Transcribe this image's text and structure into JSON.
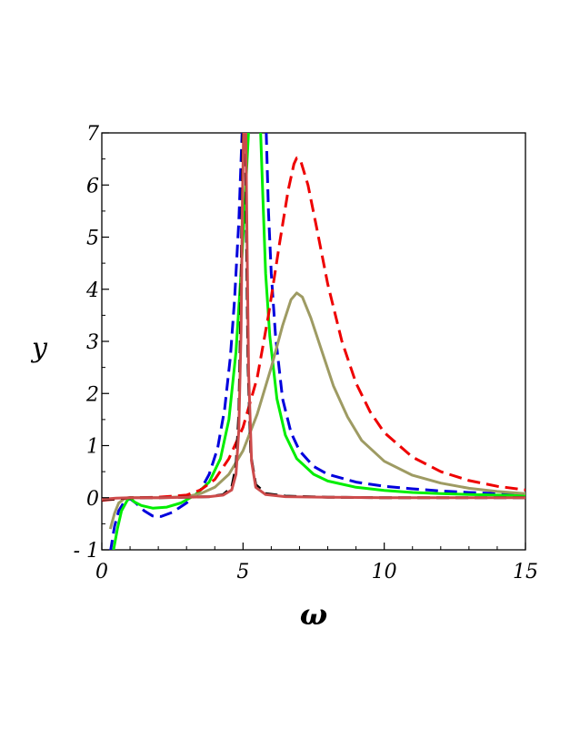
{
  "chart_data": {
    "type": "line",
    "xlabel": "ω",
    "ylabel": "y",
    "xlim": [
      0,
      15
    ],
    "ylim": [
      -1,
      7
    ],
    "x_ticks": [
      {
        "value": 0,
        "label": "0"
      },
      {
        "value": 5,
        "label": "5"
      },
      {
        "value": 10,
        "label": "10"
      },
      {
        "value": 15,
        "label": "15"
      }
    ],
    "y_ticks": [
      {
        "value": -1,
        "label": "- 1"
      },
      {
        "value": 0,
        "label": "0"
      },
      {
        "value": 1,
        "label": "1"
      },
      {
        "value": 2,
        "label": "2"
      },
      {
        "value": 3,
        "label": "3"
      },
      {
        "value": 4,
        "label": "4"
      },
      {
        "value": 5,
        "label": "5"
      },
      {
        "value": 6,
        "label": "6"
      },
      {
        "value": 7,
        "label": "7"
      }
    ],
    "grid": false,
    "series": [
      {
        "color": "#0000dd",
        "style": "dashed",
        "points": [
          [
            0.3,
            -1.05
          ],
          [
            0.45,
            -0.55
          ],
          [
            0.6,
            -0.25
          ],
          [
            0.8,
            -0.07
          ],
          [
            1.0,
            -0.02
          ],
          [
            1.2,
            -0.1
          ],
          [
            1.5,
            -0.25
          ],
          [
            1.8,
            -0.35
          ],
          [
            2.1,
            -0.36
          ],
          [
            2.5,
            -0.28
          ],
          [
            3.0,
            -0.1
          ],
          [
            3.5,
            0.15
          ],
          [
            3.8,
            0.45
          ],
          [
            4.1,
            0.95
          ],
          [
            4.35,
            1.7
          ],
          [
            4.55,
            2.7
          ],
          [
            4.7,
            3.8
          ],
          [
            4.85,
            5.3
          ],
          [
            4.97,
            7.05
          ],
          [
            5.82,
            7.05
          ],
          [
            5.9,
            5.5
          ],
          [
            6.0,
            4.3
          ],
          [
            6.15,
            3.1
          ],
          [
            6.4,
            1.9
          ],
          [
            6.7,
            1.25
          ],
          [
            7.0,
            0.9
          ],
          [
            7.5,
            0.6
          ],
          [
            8.0,
            0.45
          ],
          [
            9.0,
            0.3
          ],
          [
            10.0,
            0.22
          ],
          [
            11.0,
            0.17
          ],
          [
            12.0,
            0.13
          ],
          [
            13.0,
            0.1
          ],
          [
            14.0,
            0.08
          ],
          [
            15.0,
            0.07
          ]
        ]
      },
      {
        "color": "#00ee00",
        "style": "solid",
        "points": [
          [
            0.4,
            -1.05
          ],
          [
            0.55,
            -0.6
          ],
          [
            0.7,
            -0.25
          ],
          [
            0.9,
            -0.05
          ],
          [
            1.0,
            0.0
          ],
          [
            1.15,
            -0.08
          ],
          [
            1.4,
            -0.15
          ],
          [
            1.8,
            -0.2
          ],
          [
            2.3,
            -0.18
          ],
          [
            2.8,
            -0.1
          ],
          [
            3.3,
            0.05
          ],
          [
            3.8,
            0.3
          ],
          [
            4.2,
            0.75
          ],
          [
            4.5,
            1.5
          ],
          [
            4.75,
            2.8
          ],
          [
            4.95,
            4.5
          ],
          [
            5.1,
            6.0
          ],
          [
            5.2,
            7.05
          ],
          [
            5.62,
            7.05
          ],
          [
            5.7,
            5.8
          ],
          [
            5.8,
            4.3
          ],
          [
            5.95,
            3.1
          ],
          [
            6.2,
            1.9
          ],
          [
            6.5,
            1.2
          ],
          [
            6.9,
            0.75
          ],
          [
            7.5,
            0.45
          ],
          [
            8.0,
            0.32
          ],
          [
            9.0,
            0.2
          ],
          [
            10.0,
            0.14
          ],
          [
            11.0,
            0.1
          ],
          [
            12.0,
            0.08
          ],
          [
            13.0,
            0.06
          ],
          [
            14.0,
            0.05
          ],
          [
            15.0,
            0.04
          ]
        ]
      },
      {
        "color": "#9e9b63",
        "style": "solid",
        "points": [
          [
            0.3,
            -0.6
          ],
          [
            0.45,
            -0.3
          ],
          [
            0.6,
            -0.1
          ],
          [
            0.8,
            -0.02
          ],
          [
            1.0,
            0.0
          ],
          [
            2.0,
            0.0
          ],
          [
            3.0,
            0.02
          ],
          [
            3.5,
            0.08
          ],
          [
            4.0,
            0.2
          ],
          [
            4.5,
            0.45
          ],
          [
            5.0,
            0.9
          ],
          [
            5.5,
            1.6
          ],
          [
            6.0,
            2.5
          ],
          [
            6.4,
            3.3
          ],
          [
            6.7,
            3.8
          ],
          [
            6.9,
            3.93
          ],
          [
            7.1,
            3.85
          ],
          [
            7.4,
            3.45
          ],
          [
            7.8,
            2.8
          ],
          [
            8.2,
            2.15
          ],
          [
            8.7,
            1.55
          ],
          [
            9.2,
            1.1
          ],
          [
            10.0,
            0.7
          ],
          [
            11.0,
            0.43
          ],
          [
            12.0,
            0.28
          ],
          [
            13.0,
            0.18
          ],
          [
            14.0,
            0.12
          ],
          [
            15.0,
            0.08
          ]
        ]
      },
      {
        "color": "#ee0000",
        "style": "dashed",
        "points": [
          [
            0.0,
            -0.05
          ],
          [
            1.0,
            0.0
          ],
          [
            2.0,
            0.01
          ],
          [
            3.0,
            0.05
          ],
          [
            3.5,
            0.15
          ],
          [
            4.0,
            0.35
          ],
          [
            4.5,
            0.75
          ],
          [
            5.0,
            1.35
          ],
          [
            5.5,
            2.3
          ],
          [
            5.9,
            3.5
          ],
          [
            6.3,
            4.9
          ],
          [
            6.6,
            5.9
          ],
          [
            6.8,
            6.4
          ],
          [
            6.9,
            6.52
          ],
          [
            7.05,
            6.45
          ],
          [
            7.3,
            6.0
          ],
          [
            7.6,
            5.2
          ],
          [
            8.0,
            4.1
          ],
          [
            8.5,
            3.0
          ],
          [
            9.0,
            2.2
          ],
          [
            9.5,
            1.65
          ],
          [
            10.0,
            1.25
          ],
          [
            11.0,
            0.78
          ],
          [
            12.0,
            0.5
          ],
          [
            13.0,
            0.33
          ],
          [
            14.0,
            0.22
          ],
          [
            15.0,
            0.15
          ]
        ]
      },
      {
        "color": "#000000",
        "style": "dashed",
        "points": [
          [
            0.0,
            -0.04
          ],
          [
            1.0,
            0.0
          ],
          [
            2.0,
            0.0
          ],
          [
            3.0,
            0.01
          ],
          [
            3.8,
            0.02
          ],
          [
            4.3,
            0.06
          ],
          [
            4.6,
            0.2
          ],
          [
            4.75,
            0.6
          ],
          [
            4.85,
            1.6
          ],
          [
            4.92,
            3.5
          ],
          [
            4.97,
            6.0
          ],
          [
            5.0,
            7.05
          ],
          [
            5.08,
            7.05
          ],
          [
            5.12,
            5.0
          ],
          [
            5.18,
            2.5
          ],
          [
            5.28,
            0.8
          ],
          [
            5.45,
            0.25
          ],
          [
            5.8,
            0.08
          ],
          [
            6.5,
            0.03
          ],
          [
            8.0,
            0.01
          ],
          [
            10.0,
            0.0
          ],
          [
            15.0,
            0.0
          ]
        ]
      },
      {
        "color": "#cd4b4b",
        "style": "solid",
        "points": [
          [
            0.0,
            -0.03
          ],
          [
            0.5,
            -0.01
          ],
          [
            1.0,
            0.0
          ],
          [
            2.0,
            0.0
          ],
          [
            3.0,
            0.01
          ],
          [
            3.8,
            0.02
          ],
          [
            4.3,
            0.05
          ],
          [
            4.6,
            0.15
          ],
          [
            4.75,
            0.45
          ],
          [
            4.85,
            1.3
          ],
          [
            4.93,
            3.2
          ],
          [
            4.98,
            5.8
          ],
          [
            5.02,
            7.05
          ],
          [
            5.1,
            7.05
          ],
          [
            5.14,
            5.0
          ],
          [
            5.2,
            2.4
          ],
          [
            5.3,
            0.7
          ],
          [
            5.45,
            0.2
          ],
          [
            5.8,
            0.06
          ],
          [
            6.5,
            0.02
          ],
          [
            8.0,
            0.01
          ],
          [
            10.0,
            0.0
          ],
          [
            15.0,
            0.0
          ]
        ]
      }
    ]
  }
}
